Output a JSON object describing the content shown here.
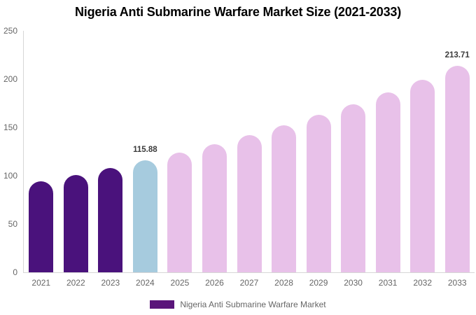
{
  "title": "Nigeria Anti Submarine Warfare Market Size (2021-2033)",
  "legend": {
    "label": "Nigeria Anti Submarine Warfare Market",
    "swatch_color": "#5a157a"
  },
  "colors": {
    "historical_bar": "#4a127c",
    "base_year_bar": "#a6cbde",
    "forecast_bar": "#e8c1e9",
    "axis_line": "#d6d6d6",
    "tick_text": "#666666",
    "value_label_text": "#3b3b3b"
  },
  "chart_data": {
    "type": "bar",
    "title": "Nigeria Anti Submarine Warfare Market Size (2021-2033)",
    "xlabel": "",
    "ylabel": "",
    "ylim": [
      0,
      250
    ],
    "yticks": [
      0,
      50,
      100,
      150,
      200,
      250
    ],
    "grid": false,
    "legend_position": "bottom",
    "categories": [
      "2021",
      "2022",
      "2023",
      "2024",
      "2025",
      "2026",
      "2027",
      "2028",
      "2029",
      "2030",
      "2031",
      "2032",
      "2033"
    ],
    "values": [
      94,
      101,
      108.3,
      115.88,
      124,
      132.7,
      142,
      152,
      162.7,
      174.1,
      186.3,
      199.5,
      213.71
    ],
    "bar_colors": [
      "#4a127c",
      "#4a127c",
      "#4a127c",
      "#a6cbde",
      "#e8c1e9",
      "#e8c1e9",
      "#e8c1e9",
      "#e8c1e9",
      "#e8c1e9",
      "#e8c1e9",
      "#e8c1e9",
      "#e8c1e9",
      "#e8c1e9"
    ],
    "data_labels": {
      "2024": "115.88",
      "2033": "213.71"
    }
  }
}
